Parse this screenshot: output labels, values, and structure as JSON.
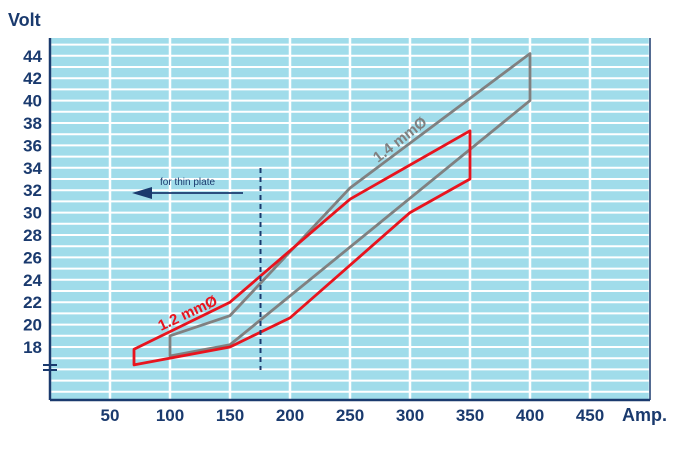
{
  "chart_data": {
    "type": "area",
    "ylabel": "Volt",
    "xlabel": "Amp.",
    "xlim": [
      0,
      500
    ],
    "ylim": [
      12,
      45
    ],
    "x_ticks": [
      50,
      100,
      150,
      200,
      250,
      300,
      350,
      400,
      450
    ],
    "y_ticks": [
      18,
      20,
      22,
      24,
      26,
      28,
      30,
      32,
      34,
      36,
      38,
      40,
      42,
      44
    ],
    "grid": true,
    "background_color": "#a0dcea",
    "grid_color": "#ffffff",
    "series": [
      {
        "name": "1.4 mmØ",
        "color": "#808080",
        "polygon": [
          [
            100,
            17.2
          ],
          [
            100,
            19.0
          ],
          [
            150,
            20.8
          ],
          [
            250,
            32.2
          ],
          [
            400,
            44.2
          ],
          [
            400,
            40.0
          ],
          [
            150,
            18.2
          ]
        ]
      },
      {
        "name": "1.2 mmØ",
        "color": "#e8141e",
        "polygon": [
          [
            70,
            16.4
          ],
          [
            70,
            17.8
          ],
          [
            150,
            22.0
          ],
          [
            250,
            31.2
          ],
          [
            350,
            37.3
          ],
          [
            350,
            33.0
          ],
          [
            300,
            30.0
          ],
          [
            200,
            20.6
          ],
          [
            150,
            18.0
          ]
        ]
      }
    ],
    "reference_line": {
      "x": 175,
      "style": "dashed",
      "color": "#1a3a6e"
    },
    "annotation": {
      "text": "for thin plate",
      "arrow": "left",
      "color": "#1a3a6e"
    }
  }
}
